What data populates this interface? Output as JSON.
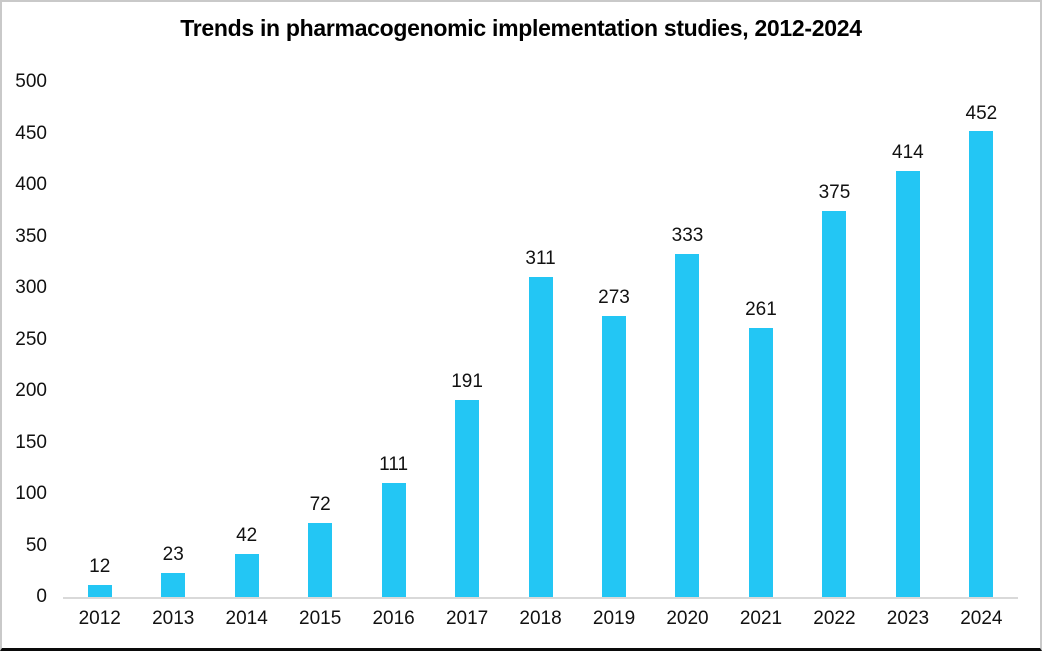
{
  "chart_data": {
    "type": "bar",
    "title": "Trends in pharmacogenomic implementation studies, 2012-2024",
    "categories": [
      "2012",
      "2013",
      "2014",
      "2015",
      "2016",
      "2017",
      "2018",
      "2019",
      "2020",
      "2021",
      "2022",
      "2023",
      "2024"
    ],
    "values": [
      12,
      23,
      42,
      72,
      111,
      191,
      311,
      273,
      333,
      261,
      375,
      414,
      452
    ],
    "data_labels_shown": true,
    "xlabel": "",
    "ylabel": "",
    "ylim": [
      0,
      500
    ],
    "yticks": [
      0,
      50,
      100,
      150,
      200,
      250,
      300,
      350,
      400,
      450,
      500
    ],
    "grid": false,
    "legend": "none",
    "colors": {
      "bar": "#23c6f4",
      "axis_line": "#d9d9d9",
      "text": "#111111",
      "title_text": "#000000",
      "frame_border": "#c9c9c9",
      "frame_bottom_border": "#0a0a0a",
      "background": "#ffffff"
    }
  }
}
